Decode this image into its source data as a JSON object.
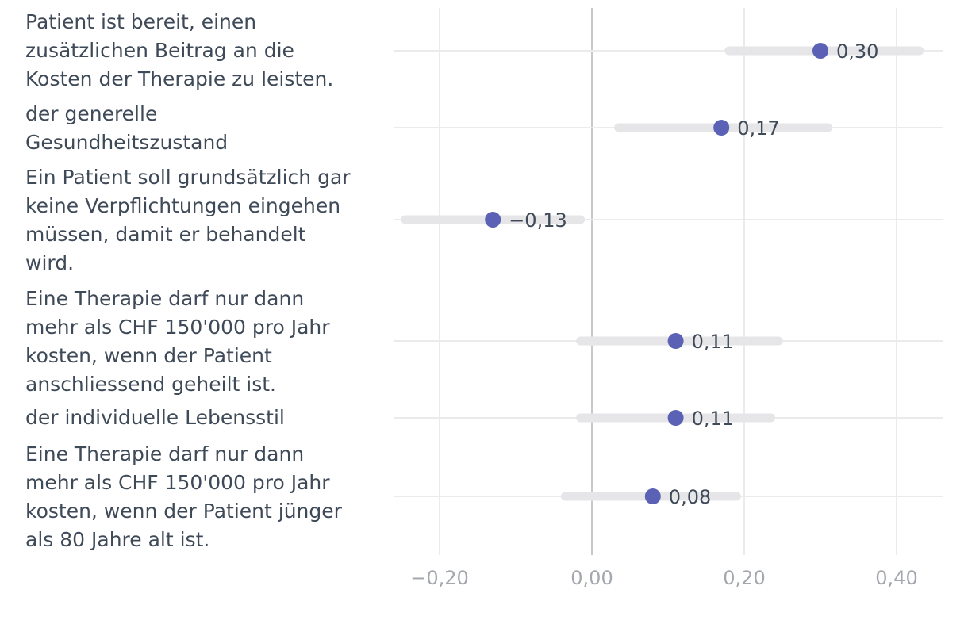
{
  "chart_data": {
    "type": "dot-plot-with-intervals",
    "xlim": [
      -0.25,
      0.43
    ],
    "x_ticks": [
      -0.2,
      0.0,
      0.2,
      0.4
    ],
    "x_tick_labels": [
      "−0,20",
      "0,00",
      "0,20",
      "0,40"
    ],
    "categories": [
      {
        "label_lines": [
          "Patient ist bereit, einen",
          "zusätzlichen Beitrag an die",
          "Kosten der Therapie zu leisten."
        ],
        "value": 0.3,
        "value_label": "0,30",
        "ci": [
          0.18,
          0.43
        ]
      },
      {
        "label_lines": [
          "der generelle",
          "Gesundheitszustand"
        ],
        "value": 0.17,
        "value_label": "0,17",
        "ci": [
          0.035,
          0.31
        ]
      },
      {
        "label_lines": [
          "Ein Patient soll grundsätzlich gar",
          "keine Verpflichtungen eingehen",
          "müssen, damit er behandelt",
          "wird."
        ],
        "value": -0.13,
        "value_label": "−0,13",
        "ci": [
          -0.245,
          -0.015
        ]
      },
      {
        "label_lines": [
          "Eine Therapie darf nur dann",
          "mehr als CHF 150'000 pro Jahr",
          "kosten, wenn der Patient",
          "anschliessend geheilt ist."
        ],
        "value": 0.11,
        "value_label": "0,11",
        "ci": [
          -0.015,
          0.245
        ]
      },
      {
        "label_lines": [
          "der individuelle Lebensstil"
        ],
        "value": 0.11,
        "value_label": "0,11",
        "ci": [
          -0.015,
          0.235
        ]
      },
      {
        "label_lines": [
          "Eine Therapie darf nur dann",
          "mehr als CHF 150'000 pro Jahr",
          "kosten, wenn der Patient jünger",
          "als 80 Jahre alt ist."
        ],
        "value": 0.08,
        "value_label": "0,08",
        "ci": [
          -0.035,
          0.19
        ]
      }
    ],
    "colors": {
      "point": "#5b62b5",
      "interval": "#e6e6e8",
      "grid": "#ebebeb",
      "zero_line": "#c9c9cc",
      "text": "#3f4a58",
      "tick_text": "#a4a8ae"
    }
  }
}
